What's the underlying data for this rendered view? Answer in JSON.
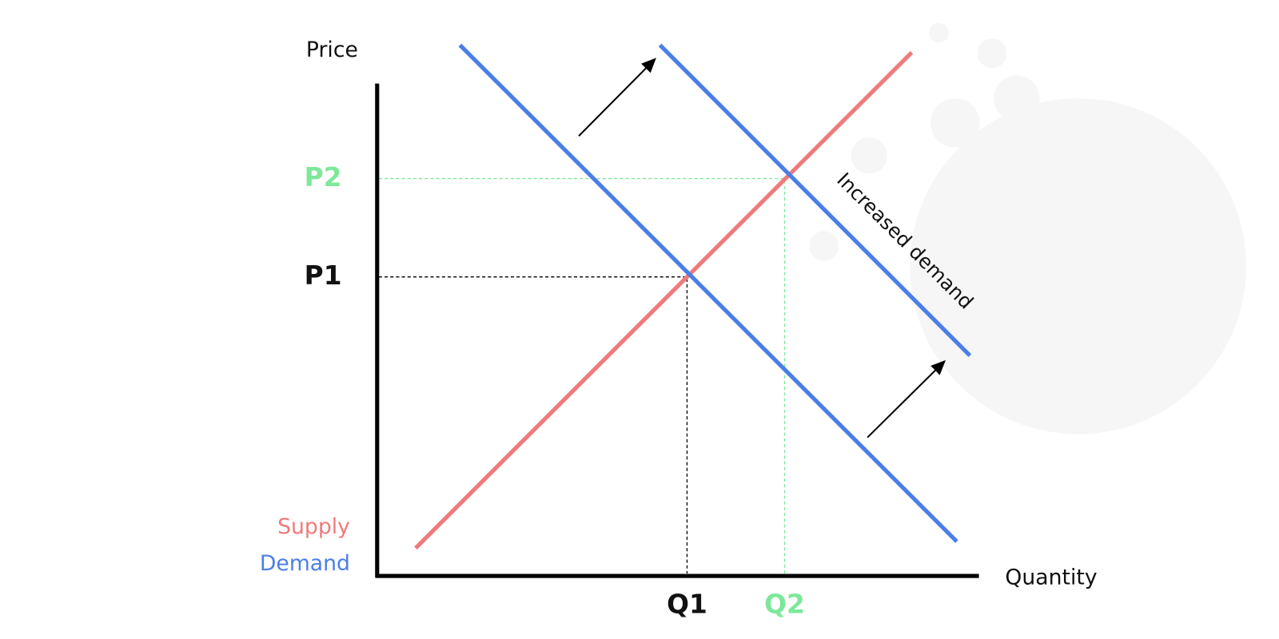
{
  "diagram": {
    "y_axis_label": "Price",
    "x_axis_label": "Quantity",
    "prices": [
      "P1",
      "P2"
    ],
    "quantities": [
      "Q1",
      "Q2"
    ],
    "legend": [
      {
        "label": "Supply"
      },
      {
        "label": "Demand"
      }
    ],
    "annotation": "Increased demand"
  }
}
